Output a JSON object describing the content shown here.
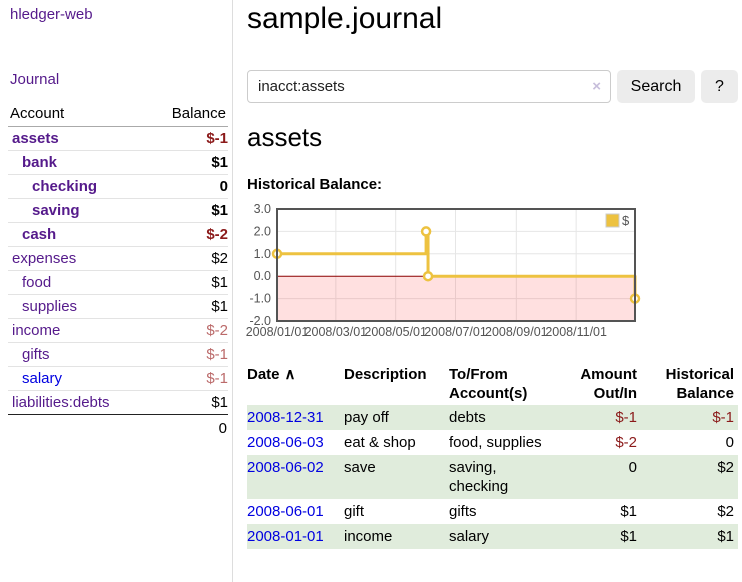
{
  "app": {
    "title": "hledger-web",
    "nav_journal": "Journal"
  },
  "sidebar": {
    "accounts_header": {
      "account": "Account",
      "balance": "Balance"
    },
    "accounts": [
      {
        "name": "assets",
        "indent": 0,
        "bold": true,
        "balance": "$-1",
        "negative": true,
        "faded": false,
        "blue": false
      },
      {
        "name": "bank",
        "indent": 1,
        "bold": true,
        "balance": "$1",
        "negative": false,
        "faded": false,
        "blue": false
      },
      {
        "name": "checking",
        "indent": 2,
        "bold": true,
        "balance": "0",
        "negative": false,
        "faded": false,
        "blue": false
      },
      {
        "name": "saving",
        "indent": 2,
        "bold": true,
        "balance": "$1",
        "negative": false,
        "faded": false,
        "blue": false
      },
      {
        "name": "cash",
        "indent": 1,
        "bold": true,
        "balance": "$-2",
        "negative": true,
        "faded": false,
        "blue": false
      },
      {
        "name": "expenses",
        "indent": 0,
        "bold": false,
        "balance": "$2",
        "negative": false,
        "faded": false,
        "blue": false
      },
      {
        "name": "food",
        "indent": 1,
        "bold": false,
        "balance": "$1",
        "negative": false,
        "faded": false,
        "blue": false
      },
      {
        "name": "supplies",
        "indent": 1,
        "bold": false,
        "balance": "$1",
        "negative": false,
        "faded": false,
        "blue": false
      },
      {
        "name": "income",
        "indent": 0,
        "bold": false,
        "balance": "$-2",
        "negative": true,
        "faded": true,
        "blue": false
      },
      {
        "name": "gifts",
        "indent": 1,
        "bold": false,
        "balance": "$-1",
        "negative": true,
        "faded": true,
        "blue": false
      },
      {
        "name": "salary",
        "indent": 1,
        "bold": false,
        "balance": "$-1",
        "negative": true,
        "faded": true,
        "blue": true
      },
      {
        "name": "liabilities:debts",
        "indent": 0,
        "bold": false,
        "balance": "$1",
        "negative": false,
        "faded": false,
        "blue": false
      }
    ],
    "total": "0"
  },
  "header": {
    "title": "sample.journal"
  },
  "search": {
    "value": "inacct:assets",
    "clear_icon": "×",
    "button": "Search",
    "help_button": "?"
  },
  "main": {
    "account_title": "assets",
    "chart_label": "Historical Balance:"
  },
  "chart_data": {
    "type": "line",
    "step": true,
    "title": "Historical Balance:",
    "legend": "$",
    "legend_position": "top-right",
    "grid": true,
    "xlim": [
      0,
      365
    ],
    "ylim": [
      -2,
      3
    ],
    "yticks": [
      {
        "label": "3.0",
        "y": 3
      },
      {
        "label": "2.0",
        "y": 2
      },
      {
        "label": "1.0",
        "y": 1
      },
      {
        "label": "0.0",
        "y": 0
      },
      {
        "label": "-1.0",
        "y": -1
      },
      {
        "label": "-2.0",
        "y": -2
      }
    ],
    "xticks": [
      {
        "label": "2008/01/01",
        "x": 0
      },
      {
        "label": "2008/03/01",
        "x": 60
      },
      {
        "label": "2008/05/01",
        "x": 121
      },
      {
        "label": "2008/07/01",
        "x": 182
      },
      {
        "label": "2008/09/01",
        "x": 244
      },
      {
        "label": "2008/11/01",
        "x": 305
      }
    ],
    "series": [
      {
        "name": "$",
        "color": "#edc240",
        "points": [
          {
            "date": "2008-01-01",
            "x": 0,
            "y": 1
          },
          {
            "date": "2008-06-01",
            "x": 152,
            "y": 2
          },
          {
            "date": "2008-06-03",
            "x": 154,
            "y": 0
          },
          {
            "date": "2008-12-31",
            "x": 365,
            "y": -1
          }
        ]
      }
    ],
    "grid_color": "#e6e6e6",
    "border_color": "#545454",
    "tick_color": "#545454",
    "zero_line_color": "#8b0000",
    "negative_region_color": "rgba(255,0,0,0.12)",
    "legend_box_border": "#cccccc"
  },
  "register": {
    "headers": {
      "date": "Date",
      "date_sort_icon": "∧",
      "description": "Description",
      "account": "To/From Account(s)",
      "amount": "Amount Out/In",
      "balance": "Historical Balance"
    },
    "rows": [
      {
        "date": "2008-12-31",
        "description": "pay off",
        "account": "debts",
        "amount": "$-1",
        "amount_neg": true,
        "balance": "$-1",
        "balance_neg": true
      },
      {
        "date": "2008-06-03",
        "description": "eat & shop",
        "account": "food, supplies",
        "amount": "$-2",
        "amount_neg": true,
        "balance": "0",
        "balance_neg": false
      },
      {
        "date": "2008-06-02",
        "description": "save",
        "account": "saving, checking",
        "amount": "0",
        "amount_neg": false,
        "balance": "$2",
        "balance_neg": false
      },
      {
        "date": "2008-06-01",
        "description": "gift",
        "account": "gifts",
        "amount": "$1",
        "amount_neg": false,
        "balance": "$2",
        "balance_neg": false
      },
      {
        "date": "2008-01-01",
        "description": "income",
        "account": "salary",
        "amount": "$1",
        "amount_neg": false,
        "balance": "$1",
        "balance_neg": false
      }
    ]
  },
  "colors": {
    "link_purple": "#551a8b",
    "link_blue": "#0000e0",
    "negative_red": "#8b1a1a",
    "negative_faded": "#bb6a6a",
    "row_green": "#e0ecdc",
    "chart_line": "#edc240",
    "chart_negative_fill": "#ffe0e0"
  }
}
